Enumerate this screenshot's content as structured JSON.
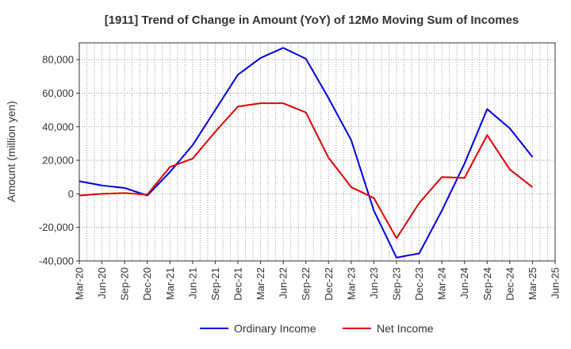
{
  "chart_data": {
    "type": "line",
    "title": "[1911]  Trend of Change in Amount (YoY) of 12Mo Moving Sum of Incomes",
    "xlabel": "",
    "ylabel": "Amount (million yen)",
    "ylim": [
      -40000,
      90000
    ],
    "yticks": [
      -40000,
      -20000,
      0,
      20000,
      40000,
      60000,
      80000
    ],
    "ytick_labels": [
      "-40,000",
      "-20,000",
      "0",
      "20,000",
      "40,000",
      "60,000",
      "80,000"
    ],
    "x_tick_labels": [
      "Mar-20",
      "Jun-20",
      "Sep-20",
      "Dec-20",
      "Mar-21",
      "Jun-21",
      "Sep-21",
      "Dec-21",
      "Mar-22",
      "Jun-22",
      "Sep-22",
      "Dec-22",
      "Mar-23",
      "Jun-23",
      "Sep-23",
      "Dec-23",
      "Mar-24",
      "Jun-24",
      "Sep-24",
      "Dec-24",
      "Mar-25",
      "Jun-25"
    ],
    "grid": true,
    "legend_position": "bottom",
    "series": [
      {
        "name": "Ordinary Income",
        "color": "#0000dd",
        "values": [
          7500,
          5000,
          3500,
          -1000,
          13000,
          29000,
          50000,
          71000,
          81000,
          87000,
          80500,
          57000,
          32000,
          -10000,
          -38000,
          -35500,
          -10000,
          18000,
          50500,
          39000,
          22000
        ]
      },
      {
        "name": "Net Income",
        "color": "#dd0000",
        "values": [
          -1000,
          0,
          500,
          -500,
          16000,
          21000,
          37000,
          52000,
          54000,
          54000,
          48500,
          21500,
          4000,
          -2500,
          -26500,
          -5500,
          10000,
          9500,
          35000,
          14500,
          4000
        ]
      }
    ]
  }
}
